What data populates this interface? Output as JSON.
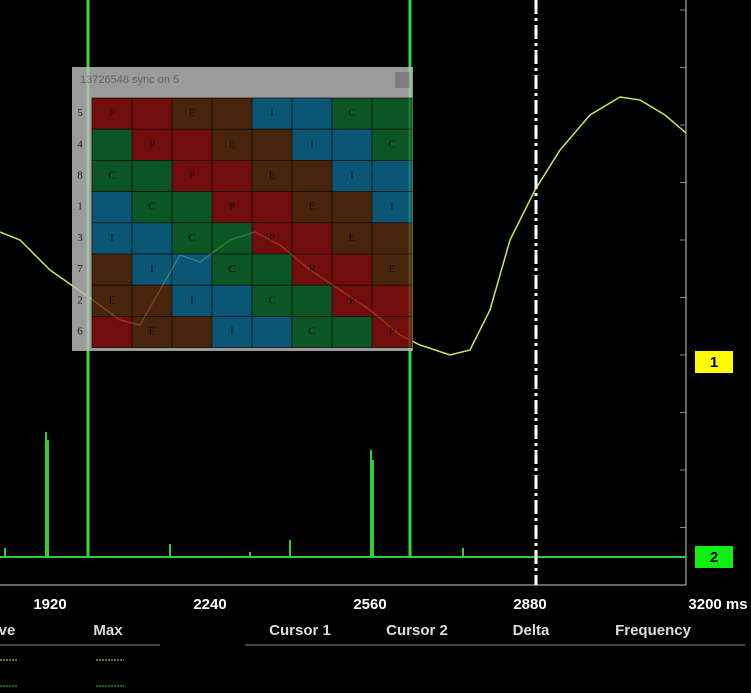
{
  "window": {
    "title": "13726548 sync on 5",
    "rows": [
      {
        "label": "5",
        "cells": [
          "P",
          null,
          "E",
          null,
          "I",
          null,
          "C",
          null
        ]
      },
      {
        "label": "4",
        "cells": [
          null,
          "P",
          null,
          "E",
          null,
          "I",
          null,
          "C"
        ]
      },
      {
        "label": "8",
        "cells": [
          "C",
          null,
          "P",
          null,
          "E",
          null,
          "I",
          null
        ]
      },
      {
        "label": "1",
        "cells": [
          null,
          "C",
          null,
          "P",
          null,
          "E",
          null,
          "I"
        ]
      },
      {
        "label": "3",
        "cells": [
          "I",
          null,
          "C",
          null,
          "P",
          null,
          "E",
          null
        ]
      },
      {
        "label": "7",
        "cells": [
          null,
          "I",
          null,
          "C",
          null,
          "P",
          null,
          "E"
        ]
      },
      {
        "label": "2",
        "cells": [
          "E",
          null,
          "I",
          null,
          "C",
          null,
          "P",
          null
        ]
      },
      {
        "label": "6",
        "cells": [
          null,
          "E",
          null,
          "I",
          null,
          "C",
          null,
          "P"
        ]
      }
    ]
  },
  "x_axis": {
    "labels": [
      "1920",
      "2240",
      "2560",
      "2880",
      "3200 ms"
    ]
  },
  "channels": [
    "1",
    "2"
  ],
  "legend_headers": [
    "ve",
    "Max"
  ],
  "cursor_headers": [
    "Cursor 1",
    "Cursor 2",
    "Delta",
    "Frequency"
  ]
}
